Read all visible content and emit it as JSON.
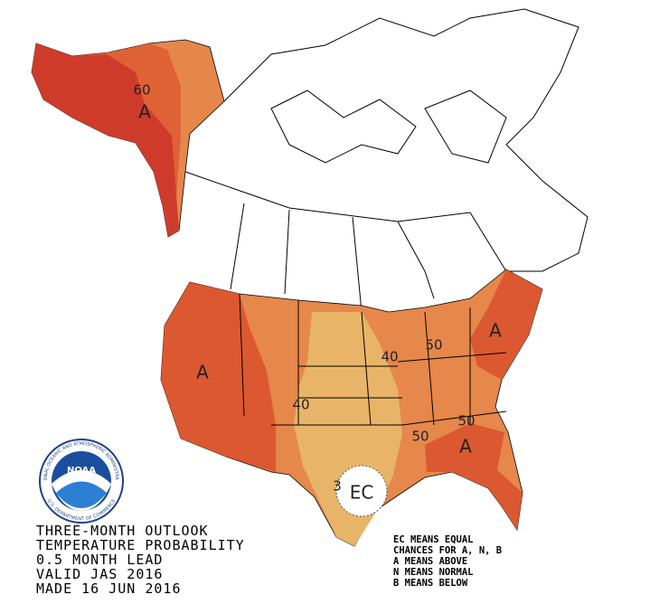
{
  "map": {
    "labels": [
      {
        "text": "60"
      },
      {
        "text": "A"
      },
      {
        "text": "A"
      },
      {
        "text": "40"
      },
      {
        "text": "40"
      },
      {
        "text": "50"
      },
      {
        "text": "A"
      },
      {
        "text": "50"
      },
      {
        "text": "50"
      },
      {
        "text": "A"
      },
      {
        "text": "3"
      },
      {
        "text": "EC"
      }
    ]
  },
  "title_lines": [
    "THREE-MONTH OUTLOOK",
    "TEMPERATURE PROBABILITY",
    "0.5 MONTH LEAD",
    "VALID JAS 2016",
    "MADE 16 JUN 2016"
  ],
  "legend_lines": [
    "EC MEANS EQUAL",
    "CHANCES FOR A, N, B",
    "A MEANS ABOVE",
    "N MEANS NORMAL",
    "B MEANS BELOW"
  ],
  "logo": {
    "text": "NOAA",
    "ring_top": "NATIONAL OCEANIC AND ATMOSPHERIC ADMINISTRATION",
    "ring_bottom": "U.S. DEPARTMENT OF COMMERCE"
  }
}
